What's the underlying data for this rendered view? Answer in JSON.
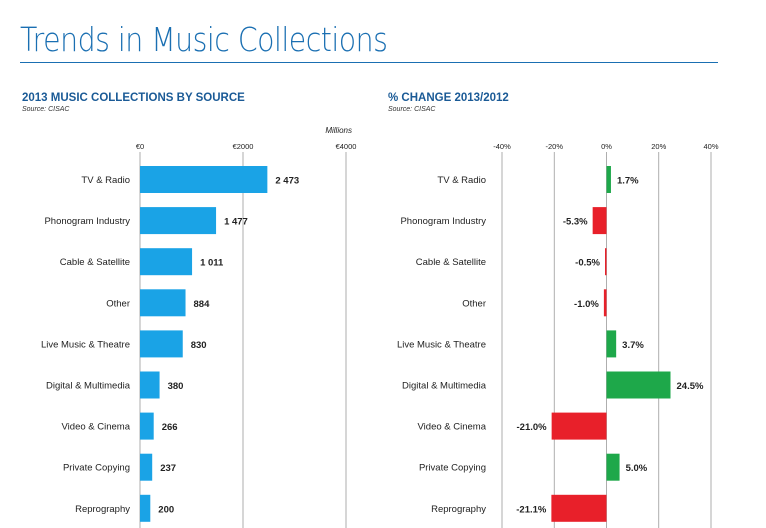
{
  "page": {
    "title": "Trends in Music Collections"
  },
  "chart_data": [
    {
      "type": "bar",
      "orientation": "horizontal",
      "title": "2013 MUSIC COLLECTIONS BY SOURCE",
      "source": "Source: CISAC",
      "units_label": "Millions",
      "categories": [
        "TV & Radio",
        "Phonogram Industry",
        "Cable & Satellite",
        "Other",
        "Live Music & Theatre",
        "Digital & Multimedia",
        "Video & Cinema",
        "Private Copying",
        "Reprography"
      ],
      "values": [
        2473,
        1477,
        1011,
        884,
        830,
        380,
        266,
        237,
        200
      ],
      "value_labels": [
        "2 473",
        "1 477",
        "1 011",
        "884",
        "830",
        "380",
        "266",
        "237",
        "200"
      ],
      "xlim": [
        0,
        4000
      ],
      "xticks": [
        0,
        2000,
        4000
      ],
      "xtick_labels": [
        "€0",
        "€2000",
        "€4000"
      ],
      "grid": true,
      "colors": {
        "bar": "#1aa3e6"
      }
    },
    {
      "type": "bar",
      "orientation": "horizontal",
      "title": "% CHANGE 2013/2012",
      "source": "Source: CISAC",
      "categories": [
        "TV & Radio",
        "Phonogram Industry",
        "Cable & Satellite",
        "Other",
        "Live Music & Theatre",
        "Digital & Multimedia",
        "Video & Cinema",
        "Private Copying",
        "Reprography"
      ],
      "values": [
        1.7,
        -5.3,
        -0.5,
        -1.0,
        3.7,
        24.5,
        -21.0,
        5.0,
        -21.1
      ],
      "value_labels": [
        "1.7%",
        "-5.3%",
        "-0.5%",
        "-1.0%",
        "3.7%",
        "24.5%",
        "-21.0%",
        "5.0%",
        "-21.1%"
      ],
      "xlim": [
        -40,
        40
      ],
      "xticks": [
        -40,
        -20,
        0,
        20,
        40
      ],
      "xtick_labels": [
        "-40%",
        "-20%",
        "0%",
        "20%",
        "40%"
      ],
      "grid": true,
      "colors": {
        "positive": "#1ea84a",
        "negative": "#e8202a"
      }
    }
  ]
}
